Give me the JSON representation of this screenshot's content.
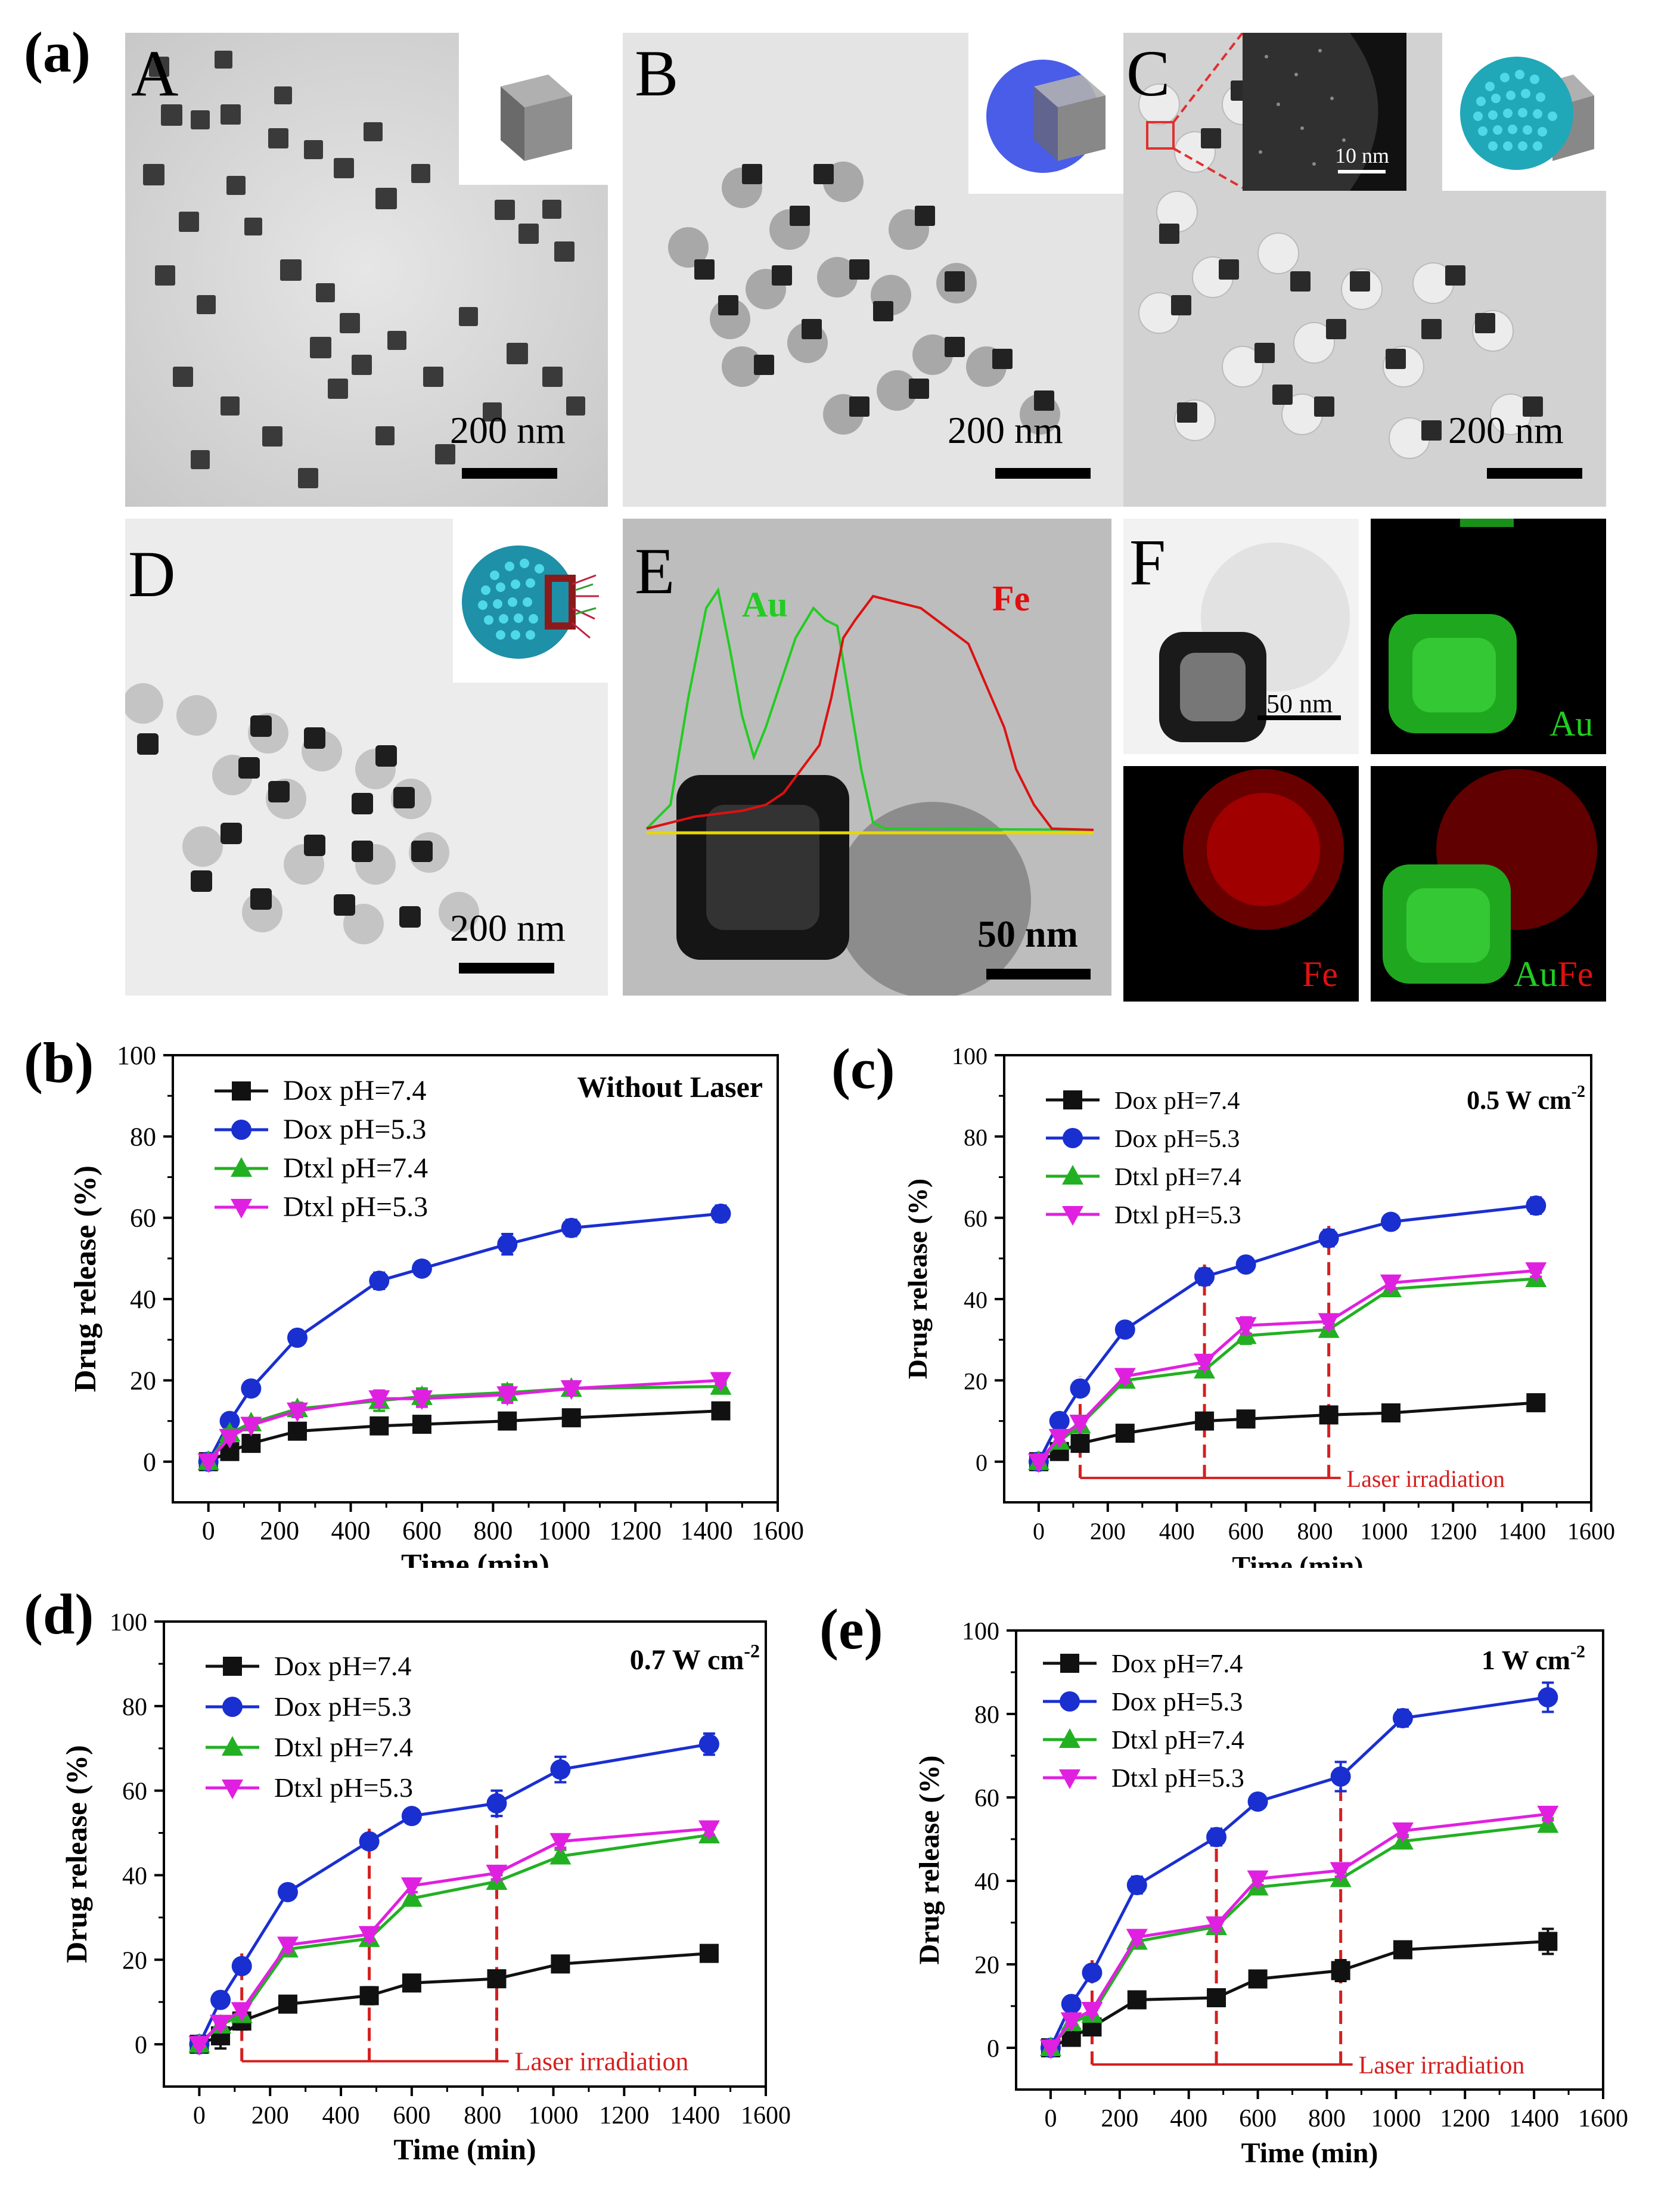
{
  "figure": {
    "label_a": "(a)",
    "label_b": "(b)",
    "label_c": "(c)",
    "label_d": "(d)",
    "label_e": "(e)"
  },
  "micrographs": {
    "A": {
      "letter": "A",
      "scale": "200 nm"
    },
    "B": {
      "letter": "B",
      "scale": "200 nm"
    },
    "C": {
      "letter": "C",
      "scale": "200 nm",
      "inset_scale": "10 nm"
    },
    "D": {
      "letter": "D",
      "scale": "200 nm"
    },
    "E": {
      "letter": "E",
      "scale": "50 nm",
      "au_label": "Au",
      "fe_label": "Fe"
    },
    "F": {
      "letter": "F",
      "scale": "50 nm",
      "map_au": "Au",
      "map_fe": "Fe",
      "map_au_prefix": "Au",
      "map_fe_suffix": "Fe"
    }
  },
  "colors": {
    "dox74": "#111111",
    "dox53": "#1a2fd0",
    "dtxl74": "#22b022",
    "dtxl53": "#e020e0",
    "laser": "#d42020",
    "au_map": "#22cc22",
    "fe_map": "#dd1111"
  },
  "chart_data": [
    {
      "id": "b",
      "type": "line",
      "annotation": "Without Laser",
      "xlabel": "Time (min)",
      "ylabel": "Drug release (%)",
      "xlim": [
        -100,
        1600
      ],
      "ylim": [
        -10,
        100
      ],
      "xticks": [
        0,
        200,
        400,
        600,
        800,
        1000,
        1200,
        1400,
        1600
      ],
      "yticks": [
        0,
        20,
        40,
        60,
        80,
        100
      ],
      "x": [
        0,
        60,
        120,
        250,
        480,
        600,
        840,
        1020,
        1440
      ],
      "laser_times": [],
      "laser_label": "",
      "series": [
        {
          "name": "Dox pH=7.4",
          "marker": "square",
          "values": [
            0,
            2.5,
            4.5,
            7.5,
            8.8,
            9.2,
            10,
            10.8,
            12.5
          ],
          "errors": [
            0.5,
            1,
            1,
            2,
            1.5,
            2,
            1.5,
            1.5,
            1.5
          ]
        },
        {
          "name": "Dox pH=5.3",
          "marker": "circle",
          "values": [
            0,
            10,
            18,
            30.5,
            44.5,
            47.5,
            53.5,
            57.5,
            61
          ],
          "errors": [
            0.5,
            1,
            1,
            1.5,
            2,
            1.5,
            2.5,
            2,
            2
          ]
        },
        {
          "name": "Dtxl pH=7.4",
          "marker": "triangle-up",
          "values": [
            0,
            7,
            9.5,
            13,
            15,
            16,
            17,
            18,
            18.5
          ],
          "errors": [
            0.5,
            1,
            1,
            1.5,
            2.5,
            2,
            2,
            1.5,
            1
          ]
        },
        {
          "name": "Dtxl pH=5.3",
          "marker": "triangle-down",
          "values": [
            0,
            6,
            9,
            12.5,
            15.5,
            15.5,
            16.5,
            18,
            20
          ],
          "errors": [
            0.5,
            1,
            1,
            1.5,
            2,
            2,
            2,
            1.5,
            1
          ]
        }
      ]
    },
    {
      "id": "c",
      "type": "line",
      "annotation": "0.5 W cm",
      "annotation_sup": "-2",
      "xlabel": "Time (min)",
      "ylabel": "Drug release (%)",
      "xlim": [
        -100,
        1600
      ],
      "ylim": [
        -10,
        100
      ],
      "xticks": [
        0,
        200,
        400,
        600,
        800,
        1000,
        1200,
        1400,
        1600
      ],
      "yticks": [
        0,
        20,
        40,
        60,
        80,
        100
      ],
      "x": [
        0,
        60,
        120,
        250,
        480,
        600,
        840,
        1020,
        1440
      ],
      "laser_times": [
        120,
        480,
        840
      ],
      "laser_label": "Laser irradiation",
      "series": [
        {
          "name": "Dox pH=7.4",
          "marker": "square",
          "values": [
            0,
            2.5,
            4.5,
            7,
            10,
            10.5,
            11.5,
            12,
            14.5
          ],
          "errors": [
            0.5,
            1,
            1,
            1,
            1,
            1,
            1.5,
            2,
            1.5
          ]
        },
        {
          "name": "Dox pH=5.3",
          "marker": "circle",
          "values": [
            0,
            10,
            18,
            32.5,
            45.5,
            48.5,
            55,
            59,
            63
          ],
          "errors": [
            0.5,
            1,
            1,
            1.5,
            2,
            1.5,
            2,
            1.5,
            2
          ]
        },
        {
          "name": "Dtxl pH=7.4",
          "marker": "triangle-up",
          "values": [
            0,
            5,
            9,
            20,
            22.5,
            31,
            32.5,
            42.5,
            45
          ],
          "errors": [
            0.5,
            1,
            1,
            1.5,
            1.5,
            2,
            1.5,
            1.5,
            1.5
          ]
        },
        {
          "name": "Dtxl pH=5.3",
          "marker": "triangle-down",
          "values": [
            0,
            6,
            9.5,
            21,
            24.5,
            33.5,
            34.5,
            44,
            47
          ],
          "errors": [
            0.5,
            1,
            1,
            1.5,
            1.5,
            2,
            1.5,
            1.5,
            1.5
          ]
        }
      ]
    },
    {
      "id": "d",
      "type": "line",
      "annotation": "0.7 W cm",
      "annotation_sup": "-2",
      "xlabel": "Time (min)",
      "ylabel": "Drug release (%)",
      "xlim": [
        -100,
        1600
      ],
      "ylim": [
        -10,
        100
      ],
      "xticks": [
        0,
        200,
        400,
        600,
        800,
        1000,
        1200,
        1400,
        1600
      ],
      "yticks": [
        0,
        20,
        40,
        60,
        80,
        100
      ],
      "x": [
        0,
        60,
        120,
        250,
        480,
        600,
        840,
        1020,
        1440
      ],
      "laser_times": [
        120,
        480,
        840
      ],
      "laser_label": "Laser irradiation",
      "series": [
        {
          "name": "Dox pH=7.4",
          "marker": "square",
          "values": [
            0,
            2,
            5.5,
            9.5,
            11.5,
            14.5,
            15.5,
            19,
            21.5
          ],
          "errors": [
            0.5,
            3,
            2,
            1,
            2,
            1,
            1,
            1.5,
            1.5
          ]
        },
        {
          "name": "Dox pH=5.3",
          "marker": "circle",
          "values": [
            0,
            10.5,
            18.5,
            36,
            48,
            54,
            57,
            65,
            71
          ],
          "errors": [
            0.5,
            1,
            1,
            1.5,
            1.5,
            1.5,
            3,
            3,
            2.5
          ]
        },
        {
          "name": "Dtxl pH=7.4",
          "marker": "triangle-up",
          "values": [
            0,
            4.5,
            7,
            22.5,
            25,
            34.5,
            38.5,
            44.5,
            49.5
          ],
          "errors": [
            0.5,
            1,
            1,
            1.5,
            1.5,
            1.5,
            1.5,
            1.5,
            1.5
          ]
        },
        {
          "name": "Dtxl pH=5.3",
          "marker": "triangle-down",
          "values": [
            0,
            5,
            8,
            23.5,
            26,
            37.5,
            40.5,
            48,
            51
          ],
          "errors": [
            0.5,
            1,
            1,
            1.5,
            1.5,
            1.5,
            1.5,
            1.5,
            1.5
          ]
        }
      ]
    },
    {
      "id": "e",
      "type": "line",
      "annotation": "1 W cm",
      "annotation_sup": "-2",
      "xlabel": "Time (min)",
      "ylabel": "Drug release (%)",
      "xlim": [
        -100,
        1600
      ],
      "ylim": [
        -10,
        100
      ],
      "xticks": [
        0,
        200,
        400,
        600,
        800,
        1000,
        1200,
        1400,
        1600
      ],
      "yticks": [
        0,
        20,
        40,
        60,
        80,
        100
      ],
      "x": [
        0,
        60,
        120,
        250,
        480,
        600,
        840,
        1020,
        1440
      ],
      "laser_times": [
        120,
        480,
        840
      ],
      "laser_label": "Laser irradiation",
      "series": [
        {
          "name": "Dox pH=7.4",
          "marker": "square",
          "values": [
            0,
            2.5,
            5,
            11.5,
            12,
            16.5,
            18.5,
            23.5,
            25.5
          ],
          "errors": [
            0.5,
            1,
            1,
            2,
            2,
            1.5,
            2.5,
            2,
            3
          ]
        },
        {
          "name": "Dox pH=5.3",
          "marker": "circle",
          "values": [
            0,
            10.5,
            18,
            39,
            50.5,
            59,
            65,
            79,
            84
          ],
          "errors": [
            0.5,
            1,
            1,
            2,
            2,
            1.5,
            3.5,
            2,
            3.5
          ]
        },
        {
          "name": "Dtxl pH=7.4",
          "marker": "triangle-up",
          "values": [
            0,
            6,
            8,
            25.5,
            29,
            38.5,
            40.5,
            49.5,
            53.5
          ],
          "errors": [
            0.5,
            1,
            1,
            1.5,
            1.5,
            1.5,
            1.5,
            1.5,
            1.5
          ]
        },
        {
          "name": "Dtxl pH=5.3",
          "marker": "triangle-down",
          "values": [
            0,
            6.5,
            9,
            26.5,
            29.5,
            40.5,
            42.5,
            52,
            56
          ],
          "errors": [
            0.5,
            1,
            1,
            1.5,
            1.5,
            1.5,
            1.5,
            1.5,
            1.5
          ]
        }
      ]
    }
  ]
}
